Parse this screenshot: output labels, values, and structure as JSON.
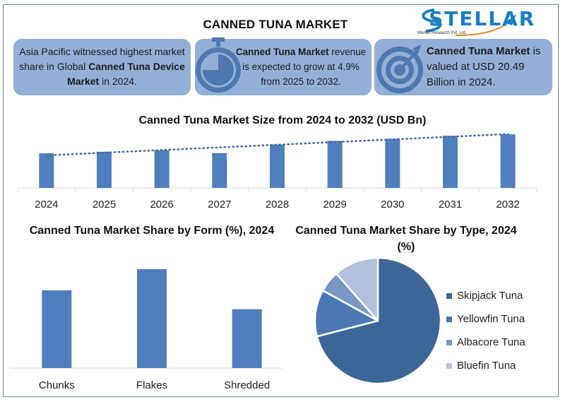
{
  "header": {
    "title": "CANNED TUNA MARKET",
    "logo_name": "STELLAR",
    "logo_sub": "Market Research Pvt. Ltd."
  },
  "cards": [
    {
      "icon": "globe-icon",
      "parts": [
        {
          "text": "Asia Pacific witnessed highest market share in Global ",
          "bold": false
        },
        {
          "text": "Canned Tuna Device Market",
          "bold": true
        },
        {
          "text": " in 2024.",
          "bold": false
        }
      ]
    },
    {
      "icon": "stopwatch-icon",
      "parts": [
        {
          "text": "Canned Tuna Market",
          "bold": true
        },
        {
          "text": " revenue is expected to grow at 4.9% from 2025 to 2032.",
          "bold": false
        }
      ]
    },
    {
      "icon": "target-icon",
      "parts": [
        {
          "text": "Canned  Tuna  Market",
          "bold": true
        },
        {
          "text": " is valued at USD 20.49 Billion in 2024.",
          "bold": false
        }
      ]
    }
  ],
  "colors": {
    "bar": "#4f7fbf",
    "card_bg": "#93afd6",
    "trendline": "#4a6a96",
    "pie": [
      "#3d6598",
      "#4a78b4",
      "#7a98c6",
      "#b3c2dc"
    ]
  },
  "chart_data": [
    {
      "type": "bar",
      "title": "Canned Tuna Market  Size from 2024 to 2032 (USD Bn)",
      "categories": [
        "2024",
        "2025",
        "2026",
        "2027",
        "2028",
        "2029",
        "2030",
        "2031",
        "2032"
      ],
      "values": [
        20.49,
        21.3,
        22.1,
        20.6,
        25.0,
        26.9,
        28.0,
        29.5,
        30.3
      ],
      "trendline": "linear-dotted",
      "xlabel": "",
      "ylabel": "",
      "ylim": [
        0,
        32
      ],
      "grid": false
    },
    {
      "type": "bar",
      "title": "Canned Tuna Market Share by Form (%), 2024",
      "categories": [
        "Chunks",
        "Flakes",
        "Shredded"
      ],
      "values": [
        33,
        42,
        25
      ],
      "xlabel": "",
      "ylabel": "",
      "ylim": [
        0,
        48
      ],
      "grid": false
    },
    {
      "type": "pie",
      "title": "Canned Tuna Market Share by Type, 2024 (%)",
      "labels": [
        "Skipjack Tuna",
        "Yellowfin Tuna",
        "Albacore Tuna",
        "Bluefin Tuna"
      ],
      "values": [
        71,
        12,
        5.5,
        11.5
      ],
      "legend": "right"
    }
  ]
}
